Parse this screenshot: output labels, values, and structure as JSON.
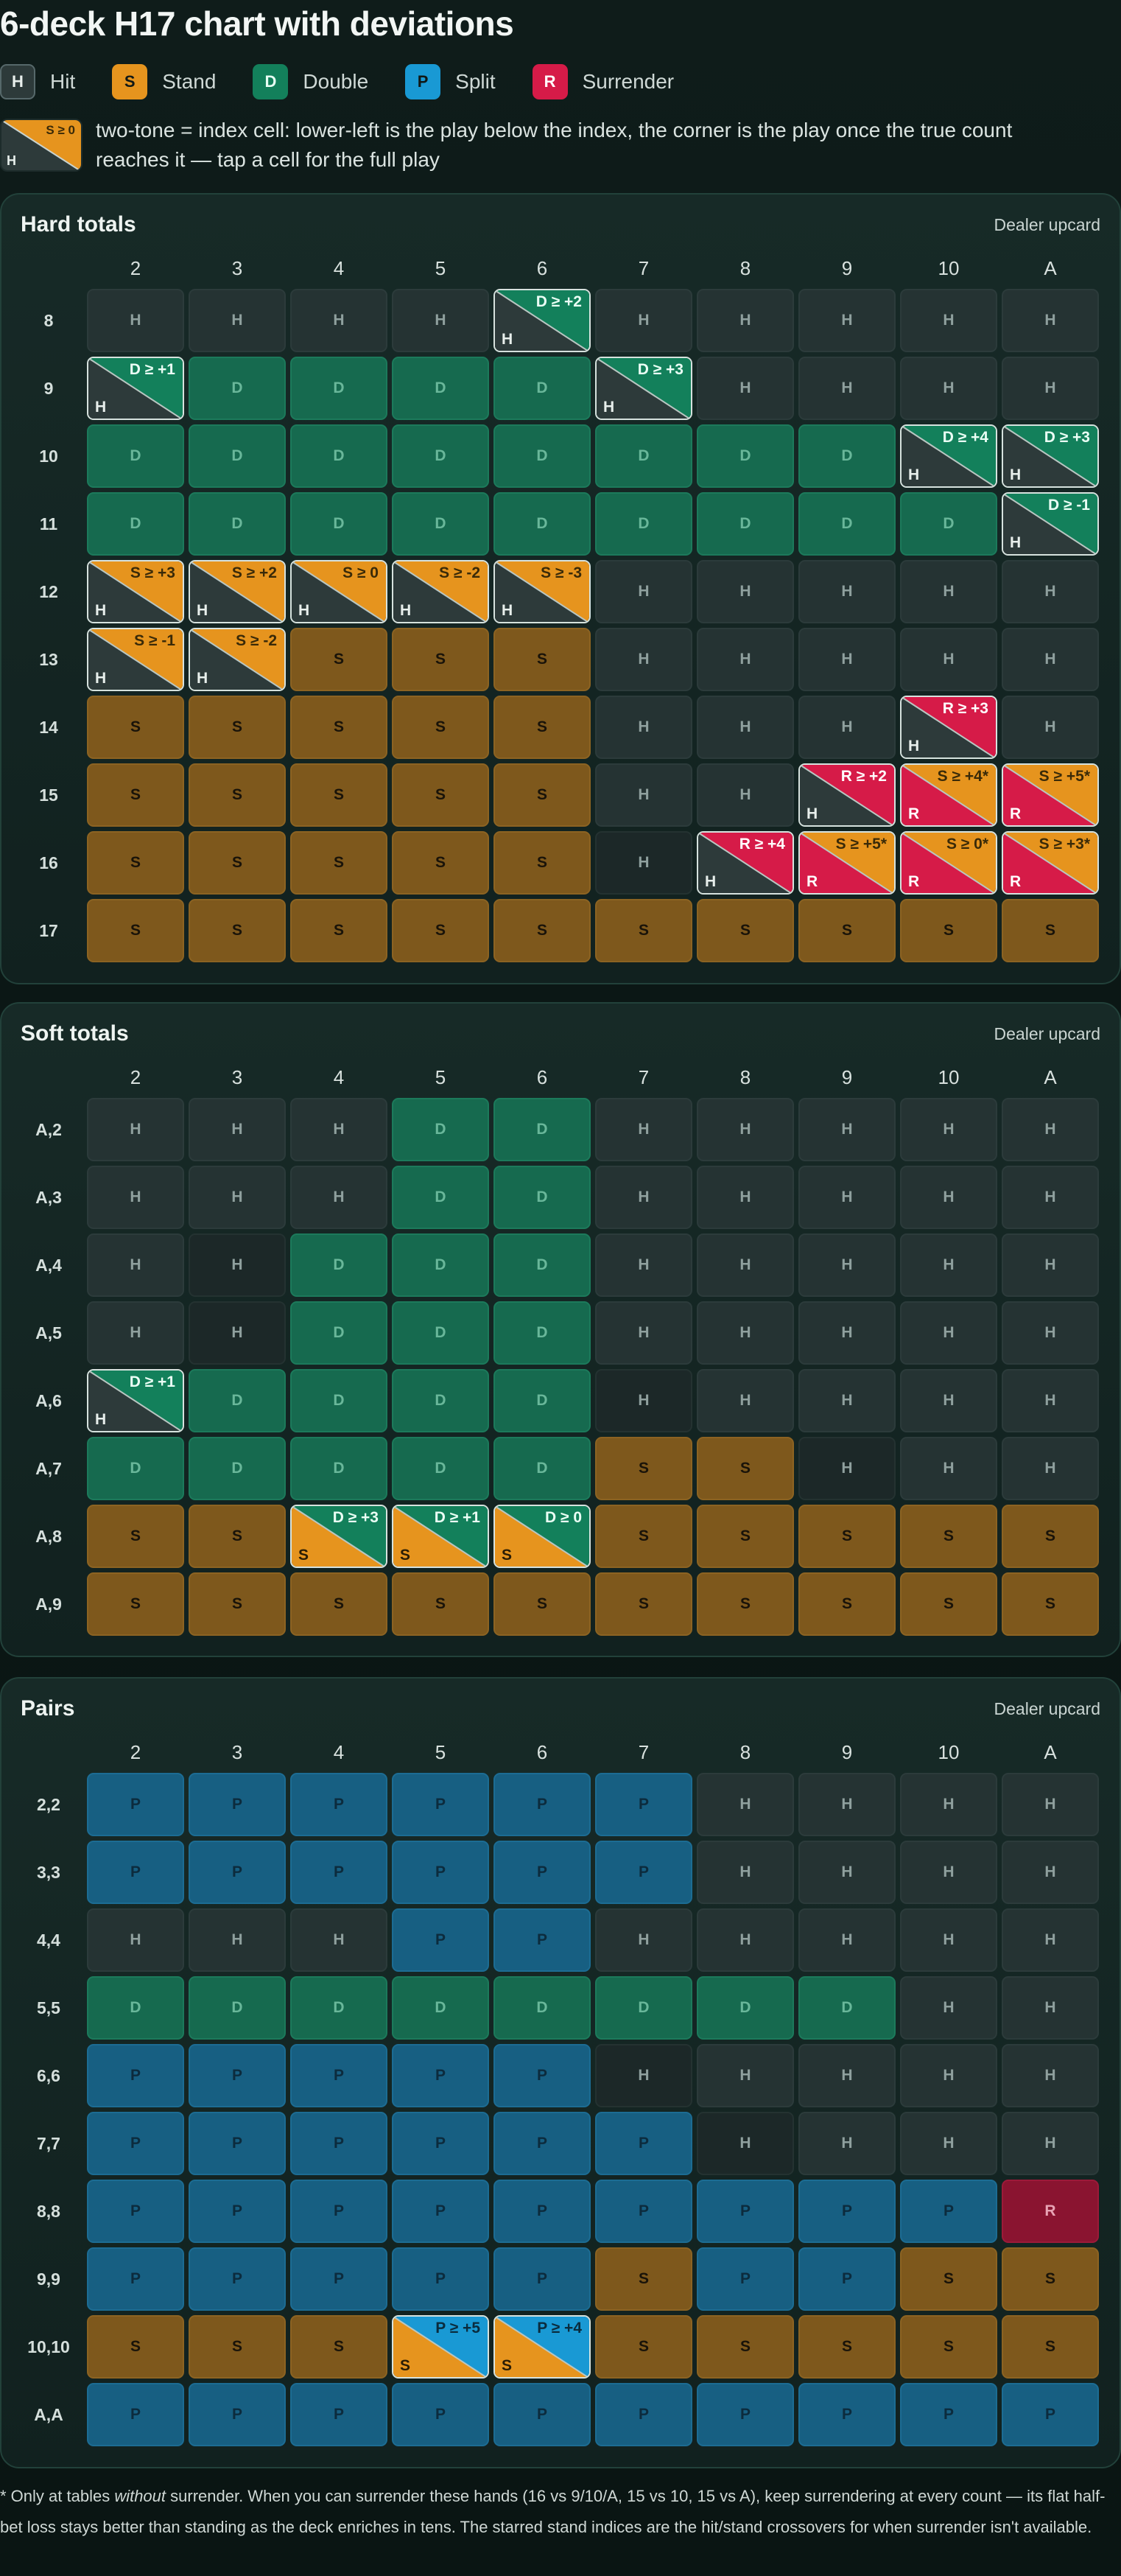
{
  "title": "6-deck H17 chart with deviations",
  "legend": [
    {
      "code": "H",
      "label": "Hit",
      "key": "h"
    },
    {
      "code": "S",
      "label": "Stand",
      "key": "s"
    },
    {
      "code": "D",
      "label": "Double",
      "key": "d"
    },
    {
      "code": "P",
      "label": "Split",
      "key": "p"
    },
    {
      "code": "R",
      "label": "Surrender",
      "key": "r"
    }
  ],
  "note": {
    "chip_corner": "S ≥ 0",
    "chip_base": "H",
    "text": "two-tone = index cell: lower-left is the play below the index, the corner is the play once the true count reaches it — tap a cell for the full play"
  },
  "colors": {
    "H": "#2d3a3a",
    "S": "#e6941e",
    "D": "#13805b",
    "P": "#1999d4",
    "R": "#d61b48"
  },
  "dealer_upcards": [
    "2",
    "3",
    "4",
    "5",
    "6",
    "7",
    "8",
    "9",
    "10",
    "A"
  ],
  "sections": [
    {
      "id": "hard",
      "title": "Hard totals",
      "upcard_label": "Dealer upcard",
      "rows": [
        {
          "label": "8",
          "cells": [
            "H",
            "H",
            "H",
            "H",
            "H>D:D ≥ +2",
            "H",
            "H",
            "H",
            "H",
            "H"
          ]
        },
        {
          "label": "9",
          "cells": [
            "H>D:D ≥ +1",
            "D",
            "D",
            "D",
            "D",
            "H>D:D ≥ +3",
            "H",
            "H",
            "H",
            "H"
          ]
        },
        {
          "label": "10",
          "cells": [
            "D",
            "D",
            "D",
            "D",
            "D",
            "D",
            "D",
            "D",
            "H>D:D ≥ +4",
            "H>D:D ≥ +3"
          ]
        },
        {
          "label": "11",
          "cells": [
            "D",
            "D",
            "D",
            "D",
            "D",
            "D",
            "D",
            "D",
            "D",
            "H>D:D ≥ -1"
          ]
        },
        {
          "label": "12",
          "cells": [
            "H>S:S ≥ +3",
            "H>S:S ≥ +2",
            "H>S:S ≥ 0",
            "H>S:S ≥ -2",
            "H>S:S ≥ -3",
            "H",
            "H",
            "H",
            "H",
            "H"
          ]
        },
        {
          "label": "13",
          "cells": [
            "H>S:S ≥ -1",
            "H>S:S ≥ -2",
            "S",
            "S",
            "S",
            "H",
            "H",
            "H",
            "H",
            "H"
          ]
        },
        {
          "label": "14",
          "cells": [
            "S",
            "S",
            "S",
            "S",
            "S",
            "H",
            "H",
            "H",
            "H>R:R ≥ +3",
            "H"
          ]
        },
        {
          "label": "15",
          "cells": [
            "S",
            "S",
            "S",
            "S",
            "S",
            "H",
            "H",
            "H>R:R ≥ +2",
            "R>S:S ≥ +4*",
            "R>S:S ≥ +5*"
          ]
        },
        {
          "label": "16",
          "cells": [
            "S",
            "S",
            "S",
            "S",
            "S",
            "Hd",
            "H>R:R ≥ +4",
            "R>S:S ≥ +5*",
            "R>S:S ≥ 0*",
            "R>S:S ≥ +3*"
          ]
        },
        {
          "label": "17",
          "cells": [
            "S",
            "S",
            "S",
            "S",
            "S",
            "S",
            "S",
            "S",
            "S",
            "S"
          ]
        }
      ]
    },
    {
      "id": "soft",
      "title": "Soft totals",
      "upcard_label": "Dealer upcard",
      "rows": [
        {
          "label": "A,2",
          "cells": [
            "H",
            "H",
            "H",
            "D",
            "D",
            "H",
            "H",
            "H",
            "H",
            "H"
          ]
        },
        {
          "label": "A,3",
          "cells": [
            "H",
            "H",
            "H",
            "D",
            "D",
            "H",
            "H",
            "H",
            "H",
            "H"
          ]
        },
        {
          "label": "A,4",
          "cells": [
            "H",
            "Hd",
            "D",
            "D",
            "D",
            "H",
            "H",
            "H",
            "H",
            "H"
          ]
        },
        {
          "label": "A,5",
          "cells": [
            "H",
            "Hd",
            "D",
            "D",
            "D",
            "H",
            "H",
            "H",
            "H",
            "H"
          ]
        },
        {
          "label": "A,6",
          "cells": [
            "H>D:D ≥ +1",
            "D",
            "D",
            "D",
            "D",
            "Hd",
            "H",
            "H",
            "H",
            "H"
          ]
        },
        {
          "label": "A,7",
          "cells": [
            "D",
            "D",
            "D",
            "D",
            "D",
            "S",
            "S",
            "Hd",
            "H",
            "H"
          ]
        },
        {
          "label": "A,8",
          "cells": [
            "S",
            "S",
            "S>D:D ≥ +3",
            "S>D:D ≥ +1",
            "S>D:D ≥ 0",
            "S",
            "S",
            "S",
            "S",
            "S"
          ]
        },
        {
          "label": "A,9",
          "cells": [
            "S",
            "S",
            "S",
            "S",
            "S",
            "S",
            "S",
            "S",
            "S",
            "S"
          ]
        }
      ]
    },
    {
      "id": "pairs",
      "title": "Pairs",
      "upcard_label": "Dealer upcard",
      "rows": [
        {
          "label": "2,2",
          "cells": [
            "P",
            "P",
            "P",
            "P",
            "P",
            "P",
            "H",
            "H",
            "H",
            "H"
          ]
        },
        {
          "label": "3,3",
          "cells": [
            "P",
            "P",
            "P",
            "P",
            "P",
            "P",
            "H",
            "H",
            "H",
            "H"
          ]
        },
        {
          "label": "4,4",
          "cells": [
            "H",
            "H",
            "H",
            "P",
            "P",
            "H",
            "H",
            "H",
            "H",
            "H"
          ]
        },
        {
          "label": "5,5",
          "cells": [
            "D",
            "D",
            "D",
            "D",
            "D",
            "D",
            "D",
            "D",
            "H",
            "H"
          ]
        },
        {
          "label": "6,6",
          "cells": [
            "P",
            "P",
            "P",
            "P",
            "P",
            "Hd",
            "H",
            "H",
            "H",
            "H"
          ]
        },
        {
          "label": "7,7",
          "cells": [
            "P",
            "P",
            "P",
            "P",
            "P",
            "P",
            "Hd",
            "H",
            "H",
            "H"
          ]
        },
        {
          "label": "8,8",
          "cells": [
            "P",
            "P",
            "P",
            "P",
            "P",
            "P",
            "P",
            "P",
            "P",
            "R"
          ]
        },
        {
          "label": "9,9",
          "cells": [
            "P",
            "P",
            "P",
            "P",
            "P",
            "S",
            "P",
            "P",
            "S",
            "S"
          ]
        },
        {
          "label": "10,10",
          "cells": [
            "S",
            "S",
            "S",
            "S>P:P ≥ +5",
            "S>P:P ≥ +4",
            "S",
            "S",
            "S",
            "S",
            "S"
          ]
        },
        {
          "label": "A,A",
          "cells": [
            "P",
            "P",
            "P",
            "P",
            "P",
            "P",
            "P",
            "P",
            "P",
            "P"
          ]
        }
      ]
    }
  ],
  "footnote": {
    "prefix": "* Only at tables ",
    "emph": "without",
    "suffix": " surrender. When you can surrender these hands (16 vs 9/10/A, 15 vs 10, 15 vs A), keep surrendering at every count — its flat half-bet loss stays better than standing as the deck enriches in tens. The starred stand indices are the hit/stand crossovers for when surrender isn't available."
  }
}
